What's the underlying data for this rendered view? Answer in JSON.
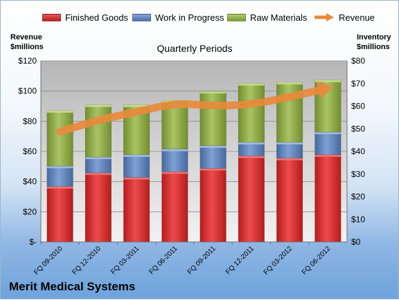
{
  "legend": [
    {
      "name": "Finished Goods",
      "color": "#d92b2b"
    },
    {
      "name": "Work in Progress",
      "color": "#5b84c2"
    },
    {
      "name": "Raw Materials",
      "color": "#93b14a"
    },
    {
      "name": "Revenue",
      "color": "#e88a3c"
    }
  ],
  "labels": {
    "left_axis_title_line1": "Revenue",
    "left_axis_title_line2": "$millions",
    "right_axis_title_line1": "Inventory",
    "right_axis_title_line2": "$millions",
    "company": "Merit Medical Systems"
  },
  "chart_data": {
    "type": "bar",
    "stacked": true,
    "title": "Quarterly Periods",
    "categories": [
      "FQ 09-2010",
      "FQ 12-2010",
      "FQ 03-2011",
      "FQ 06-2011",
      "FQ 09-2011",
      "FQ 12-2011",
      "FQ 03-2012",
      "FQ 06-2012"
    ],
    "series": [
      {
        "name": "Finished Goods",
        "axis": "right",
        "color": "#d92b2b",
        "values": [
          24.5,
          30.5,
          28.5,
          31,
          32.5,
          38,
          37,
          38.5
        ]
      },
      {
        "name": "Work in Progress",
        "axis": "right",
        "color": "#5b84c2",
        "values": [
          9,
          7,
          10,
          10,
          10,
          6,
          7,
          10
        ]
      },
      {
        "name": "Raw Materials",
        "axis": "right",
        "color": "#93b14a",
        "values": [
          24.5,
          23,
          22,
          21.5,
          24,
          26,
          26.5,
          23
        ]
      },
      {
        "name": "Revenue",
        "type": "line",
        "axis": "left",
        "color": "#e88a3c",
        "values": [
          73,
          81,
          86,
          92,
          90,
          91,
          96,
          102
        ]
      }
    ],
    "left_axis": {
      "ylim": [
        0,
        120
      ],
      "ticks": [
        "$-",
        "$20",
        "$40",
        "$60",
        "$80",
        "$100",
        "$120"
      ]
    },
    "right_axis": {
      "ylim": [
        0,
        80
      ],
      "ticks": [
        "$0",
        "$10",
        "$20",
        "$30",
        "$40",
        "$50",
        "$60",
        "$70",
        "$80"
      ]
    },
    "grid": true,
    "legend_position": "top"
  }
}
